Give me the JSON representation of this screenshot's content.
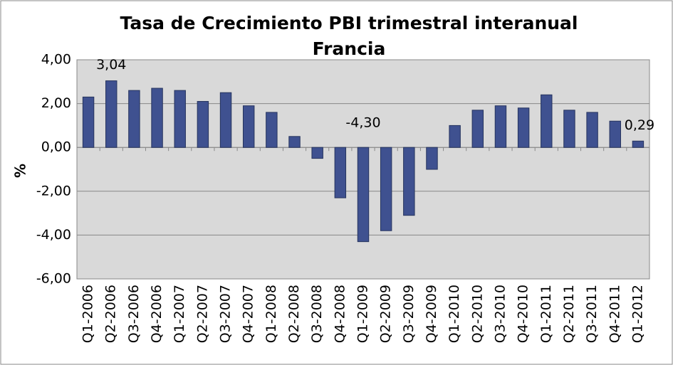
{
  "chart_data": {
    "type": "bar",
    "title": "Tasa de Crecimiento PBI trimestral interanual",
    "subtitle": "Francia",
    "y_label": "%",
    "categories": [
      "Q1-2006",
      "Q2-2006",
      "Q3-2006",
      "Q4-2006",
      "Q1-2007",
      "Q2-2007",
      "Q3-2007",
      "Q4-2007",
      "Q1-2008",
      "Q2-2008",
      "Q3-2008",
      "Q4-2008",
      "Q1-2009",
      "Q2-2009",
      "Q3-2009",
      "Q4-2009",
      "Q1-2010",
      "Q2-2010",
      "Q3-2010",
      "Q4-2010",
      "Q1-2011",
      "Q2-2011",
      "Q3-2011",
      "Q4-2011",
      "Q1-2012"
    ],
    "values": [
      2.3,
      3.04,
      2.6,
      2.7,
      2.6,
      2.1,
      2.5,
      1.9,
      1.6,
      0.5,
      -0.5,
      -2.3,
      -4.3,
      -3.8,
      -3.1,
      -1.0,
      1.0,
      1.7,
      1.9,
      1.8,
      2.4,
      1.7,
      1.6,
      1.2,
      0.29
    ],
    "value_labels": [
      null,
      "3,04",
      null,
      null,
      null,
      null,
      null,
      null,
      null,
      null,
      null,
      null,
      "-4,30",
      null,
      null,
      null,
      null,
      null,
      null,
      null,
      null,
      null,
      null,
      null,
      "0,29"
    ],
    "color": "#3f5190",
    "ylim": [
      -6,
      4
    ],
    "yticks": [
      {
        "value": -6,
        "label": "-6,00"
      },
      {
        "value": -4,
        "label": "-4,00"
      },
      {
        "value": -2,
        "label": "-2,00"
      },
      {
        "value": 0,
        "label": "0,00"
      },
      {
        "value": 2,
        "label": "2,00"
      },
      {
        "value": 4,
        "label": "4,00"
      }
    ],
    "grid": true
  }
}
